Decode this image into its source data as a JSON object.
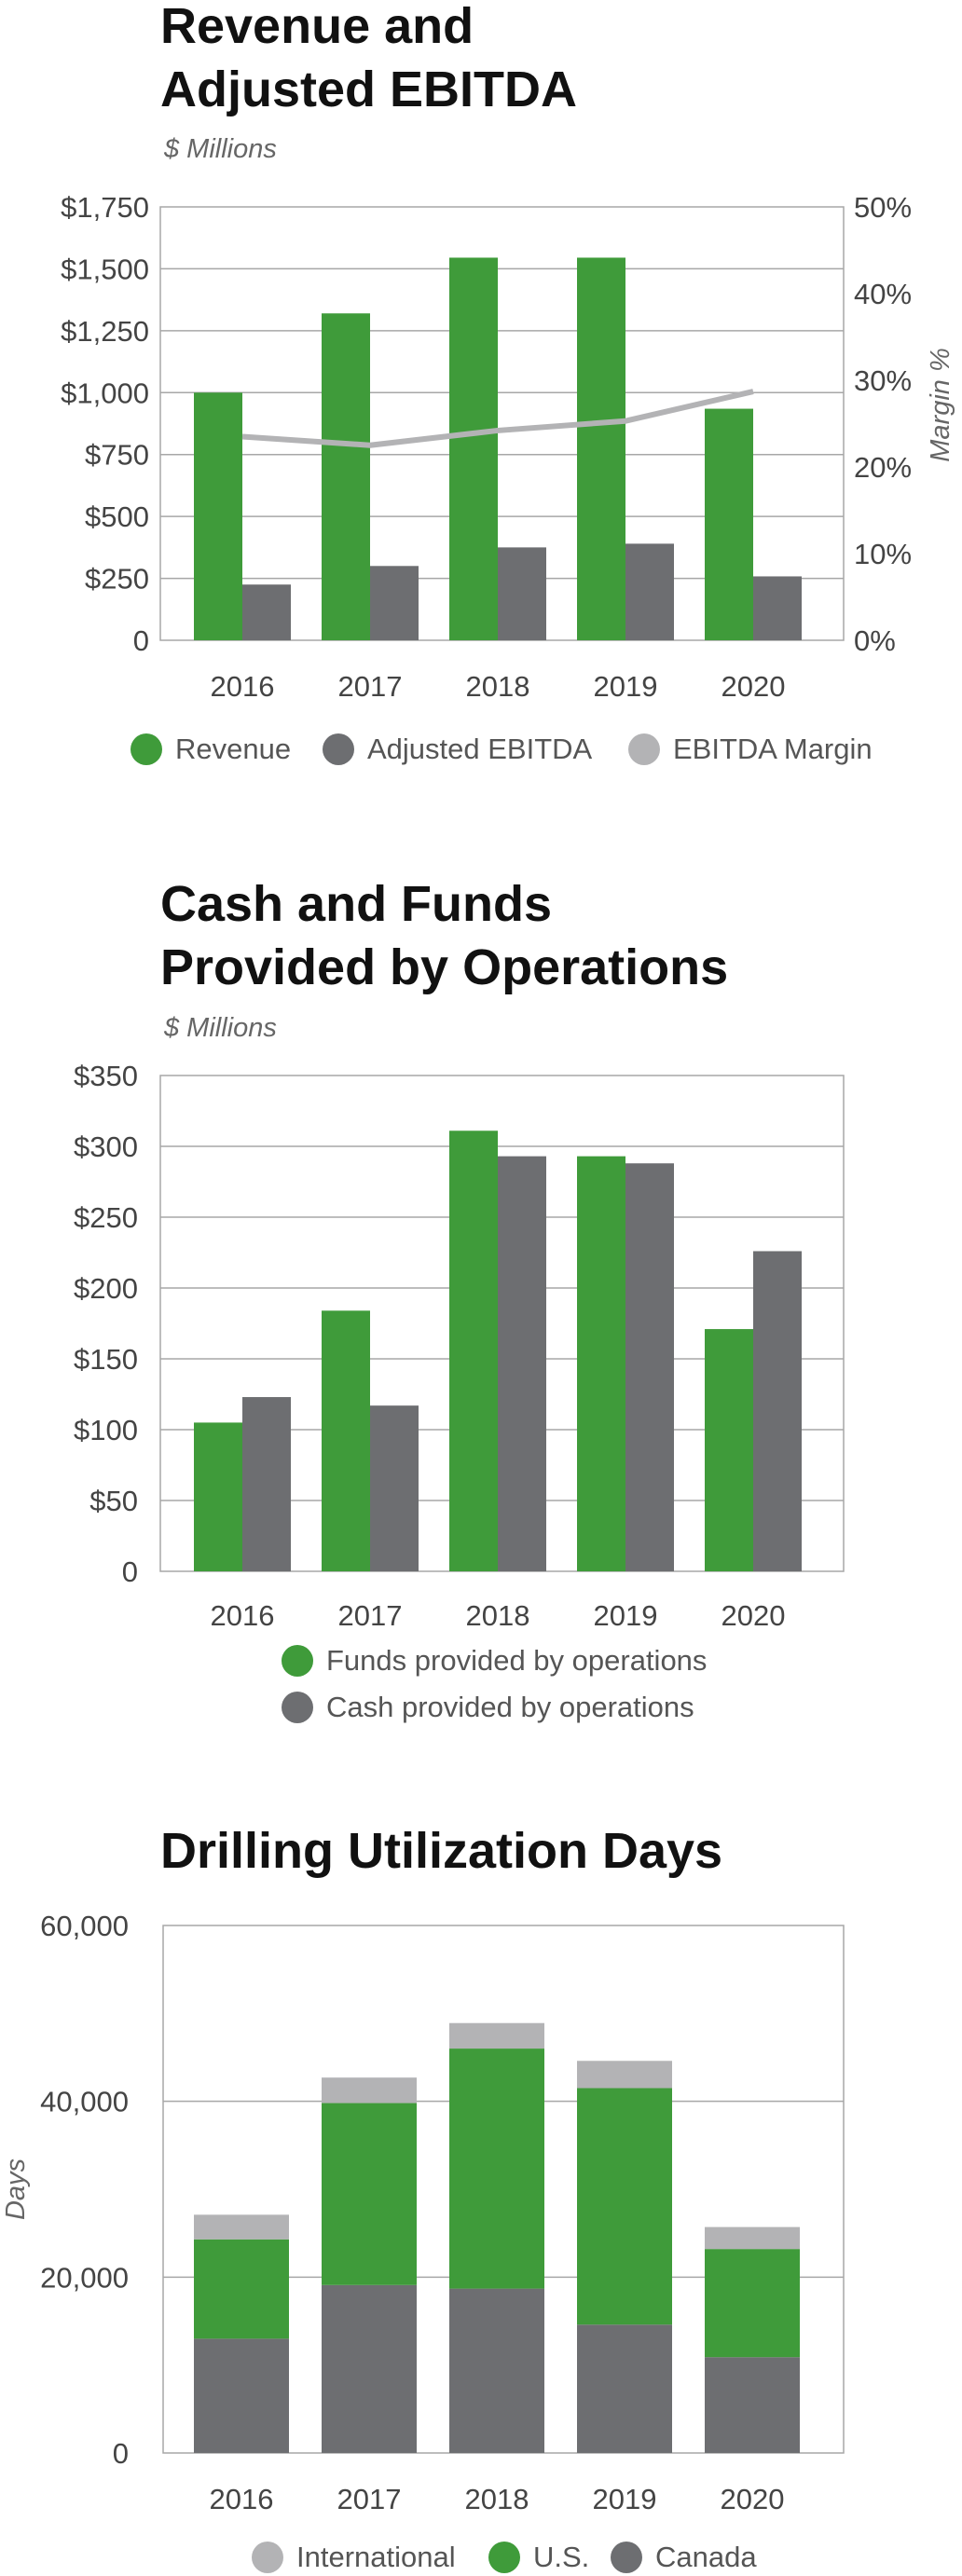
{
  "charts": [
    {
      "title_lines": [
        "Revenue and",
        "Adjusted EBITDA"
      ],
      "subtitle": "$ Millions",
      "legend": [
        "Revenue",
        "Adjusted EBITDA",
        "EBITDA Margin"
      ]
    },
    {
      "title_lines": [
        "Cash and Funds",
        "Provided by Operations"
      ],
      "subtitle": "$ Millions",
      "legend": [
        "Funds provided by operations",
        "Cash provided by operations"
      ]
    },
    {
      "title_lines": [
        "Drilling Utilization Days"
      ],
      "subtitle": "",
      "legend": [
        "International",
        "U.S.",
        "Canada"
      ]
    }
  ],
  "colors": {
    "green": "#3f9b3a",
    "dark_gray": "#6d6e71",
    "light_gray": "#b3b3b5",
    "grid": "#a7a7a7",
    "axis_text": "#444444"
  },
  "chart_data": [
    {
      "type": "bar",
      "title": "Revenue and Adjusted EBITDA",
      "subtitle": "$ Millions",
      "categories": [
        "2016",
        "2017",
        "2018",
        "2019",
        "2020"
      ],
      "ylim": [
        0,
        1750
      ],
      "yticks": [
        0,
        250,
        500,
        750,
        1000,
        1250,
        1500,
        1750
      ],
      "ytick_labels": [
        "0",
        "$250",
        "$500",
        "$750",
        "$1,000",
        "$1,250",
        "$1,500",
        "$1,750"
      ],
      "y2label": "Margin %",
      "y2lim": [
        0,
        50
      ],
      "y2ticks": [
        0,
        10,
        20,
        30,
        40,
        50
      ],
      "y2tick_labels": [
        "0%",
        "10%",
        "20%",
        "30%",
        "40%",
        "50%"
      ],
      "series": [
        {
          "name": "Revenue",
          "kind": "bar",
          "color": "#3f9b3a",
          "values": [
            1000,
            1320,
            1545,
            1545,
            935
          ]
        },
        {
          "name": "Adjusted EBITDA",
          "kind": "bar",
          "color": "#6d6e71",
          "values": [
            225,
            300,
            375,
            390,
            258
          ]
        },
        {
          "name": "EBITDA Margin",
          "kind": "line",
          "axis": "right",
          "color": "#b3b3b5",
          "values": [
            23.5,
            22.5,
            24.2,
            25.3,
            28.7
          ]
        }
      ],
      "grid": true,
      "legend_position": "bottom"
    },
    {
      "type": "bar",
      "title": "Cash and Funds Provided by Operations",
      "subtitle": "$ Millions",
      "categories": [
        "2016",
        "2017",
        "2018",
        "2019",
        "2020"
      ],
      "ylim": [
        0,
        350
      ],
      "yticks": [
        0,
        50,
        100,
        150,
        200,
        250,
        300,
        350
      ],
      "ytick_labels": [
        "0",
        "$50",
        "$100",
        "$150",
        "$200",
        "$250",
        "$300",
        "$350"
      ],
      "series": [
        {
          "name": "Funds provided by operations",
          "kind": "bar",
          "color": "#3f9b3a",
          "values": [
            105,
            184,
            311,
            293,
            171
          ]
        },
        {
          "name": "Cash provided by operations",
          "kind": "bar",
          "color": "#6d6e71",
          "values": [
            123,
            117,
            293,
            288,
            226
          ]
        }
      ],
      "grid": true,
      "legend_position": "bottom"
    },
    {
      "type": "bar",
      "stacked": true,
      "title": "Drilling Utilization Days",
      "ylabel": "Days",
      "categories": [
        "2016",
        "2017",
        "2018",
        "2019",
        "2020"
      ],
      "ylim": [
        0,
        60000
      ],
      "yticks": [
        0,
        20000,
        40000,
        60000
      ],
      "ytick_labels": [
        "0",
        "20,000",
        "40,000",
        "60,000"
      ],
      "series": [
        {
          "name": "Canada",
          "color": "#6d6e71",
          "values": [
            13000,
            19100,
            18700,
            14600,
            10900
          ]
        },
        {
          "name": "U.S.",
          "color": "#3f9b3a",
          "values": [
            11300,
            20700,
            27300,
            26900,
            12300
          ]
        },
        {
          "name": "International",
          "color": "#b3b3b5",
          "values": [
            2800,
            2900,
            2900,
            3100,
            2500
          ]
        }
      ],
      "grid": true,
      "legend_position": "bottom"
    }
  ]
}
